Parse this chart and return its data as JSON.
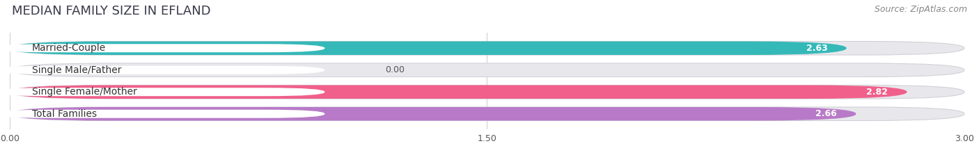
{
  "title": "MEDIAN FAMILY SIZE IN EFLAND",
  "source": "Source: ZipAtlas.com",
  "categories": [
    "Married-Couple",
    "Single Male/Father",
    "Single Female/Mother",
    "Total Families"
  ],
  "values": [
    2.63,
    0.0,
    2.82,
    2.66
  ],
  "bar_colors": [
    "#35b8b8",
    "#aabce8",
    "#f0608a",
    "#b87ac8"
  ],
  "xlim": [
    0,
    3.0
  ],
  "xticks": [
    0.0,
    1.5,
    3.0
  ],
  "xtick_labels": [
    "0.00",
    "1.50",
    "3.00"
  ],
  "background_color": "#ffffff",
  "bar_bg_color": "#e8e8ec",
  "title_fontsize": 13,
  "source_fontsize": 9,
  "label_fontsize": 10,
  "value_fontsize": 9,
  "bar_height": 0.62,
  "rounding": 0.31
}
